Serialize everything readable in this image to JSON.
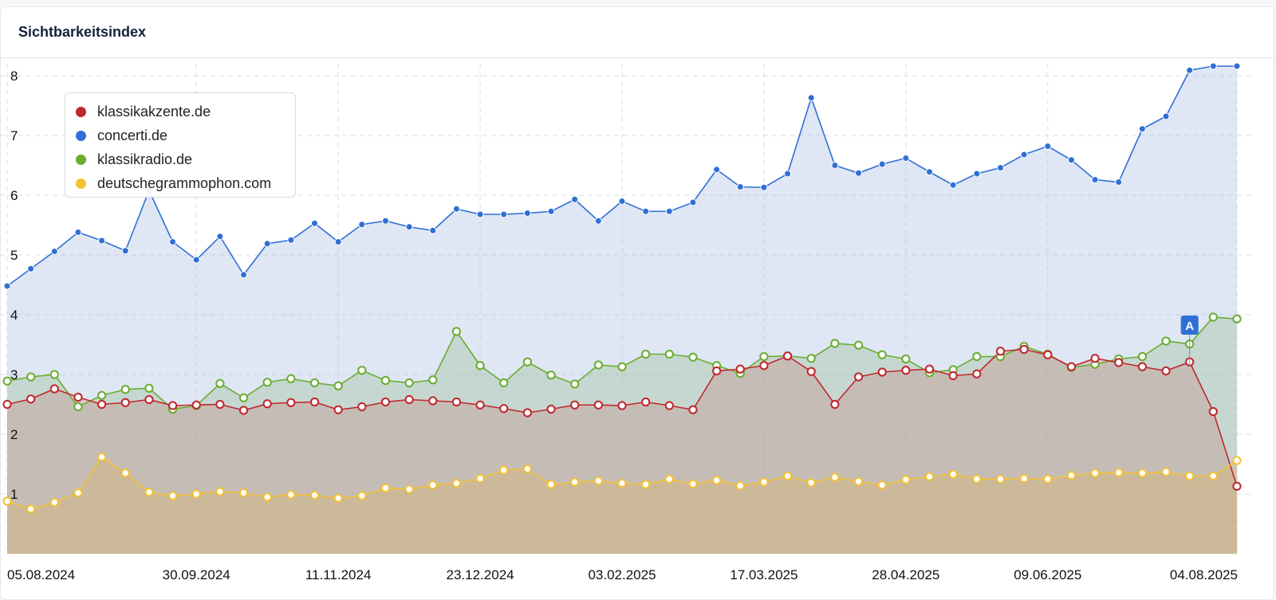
{
  "card": {
    "title": "Sichtbarkeitsindex"
  },
  "legend": [
    {
      "label": "klassikakzente.de",
      "color": "#c0272d"
    },
    {
      "label": "concerti.de",
      "color": "#2f6fd6"
    },
    {
      "label": "klassikradio.de",
      "color": "#6aad2f"
    },
    {
      "label": "deutschegrammophon.com",
      "color": "#f4c136"
    }
  ],
  "event_marker": {
    "label": "A",
    "color": "#2f6fd6"
  },
  "chart_data": {
    "type": "area",
    "title": "Sichtbarkeitsindex",
    "xlabel": "",
    "ylabel": "",
    "ylim": [
      0,
      8.3
    ],
    "y_ticks": [
      1,
      2,
      3,
      4,
      5,
      6,
      7,
      8
    ],
    "x_tick_labels": [
      "05.08.2024",
      "30.09.2024",
      "11.11.2024",
      "23.12.2024",
      "03.02.2025",
      "17.03.2025",
      "28.04.2025",
      "09.06.2025",
      "04.08.2025"
    ],
    "x_tick_indices": [
      0,
      8,
      14,
      20,
      26,
      32,
      38,
      44,
      52
    ],
    "grid": true,
    "legend_position": "top-left",
    "event_marker_index": 50,
    "series": [
      {
        "name": "concerti.de",
        "color": "#2f6fd6",
        "values": [
          4.48,
          4.77,
          5.06,
          5.38,
          5.24,
          5.07,
          6.08,
          5.22,
          4.92,
          5.31,
          4.67,
          5.19,
          5.25,
          5.53,
          5.22,
          5.51,
          5.57,
          5.47,
          5.41,
          5.77,
          5.68,
          5.68,
          5.7,
          5.73,
          5.93,
          5.57,
          5.9,
          5.73,
          5.73,
          5.88,
          6.43,
          6.14,
          6.13,
          6.36,
          7.63,
          6.5,
          6.37,
          6.52,
          6.62,
          6.39,
          6.17,
          6.36,
          6.46,
          6.68,
          6.82,
          6.59,
          6.26,
          6.22,
          7.11,
          7.32,
          8.09,
          8.16,
          8.16
        ]
      },
      {
        "name": "klassikradio.de",
        "color": "#6aad2f",
        "values": [
          2.89,
          2.96,
          3.0,
          2.46,
          2.65,
          2.75,
          2.77,
          2.42,
          2.48,
          2.85,
          2.61,
          2.87,
          2.93,
          2.86,
          2.81,
          3.07,
          2.9,
          2.86,
          2.91,
          3.72,
          3.15,
          2.86,
          3.21,
          2.99,
          2.84,
          3.16,
          3.13,
          3.34,
          3.34,
          3.29,
          3.15,
          3.02,
          3.3,
          3.31,
          3.27,
          3.52,
          3.49,
          3.33,
          3.26,
          3.03,
          3.08,
          3.3,
          3.3,
          3.47,
          3.34,
          3.12,
          3.17,
          3.26,
          3.3,
          3.56,
          3.51,
          3.96,
          3.93
        ]
      },
      {
        "name": "klassikakzente.de",
        "color": "#c0272d",
        "values": [
          2.5,
          2.59,
          2.76,
          2.62,
          2.5,
          2.53,
          2.58,
          2.48,
          2.49,
          2.5,
          2.4,
          2.51,
          2.53,
          2.54,
          2.41,
          2.46,
          2.54,
          2.58,
          2.56,
          2.54,
          2.49,
          2.43,
          2.36,
          2.42,
          2.49,
          2.49,
          2.48,
          2.54,
          2.48,
          2.41,
          3.06,
          3.09,
          3.15,
          3.31,
          3.05,
          2.5,
          2.96,
          3.04,
          3.07,
          3.09,
          2.98,
          3.01,
          3.39,
          3.42,
          3.33,
          3.13,
          3.27,
          3.2,
          3.13,
          3.06,
          3.21,
          2.38,
          1.13
        ]
      },
      {
        "name": "deutschegrammophon.com",
        "color": "#f4c136",
        "values": [
          0.88,
          0.75,
          0.86,
          1.02,
          1.62,
          1.35,
          1.03,
          0.97,
          1.0,
          1.04,
          1.02,
          0.95,
          0.99,
          0.98,
          0.93,
          0.97,
          1.1,
          1.08,
          1.15,
          1.18,
          1.26,
          1.4,
          1.42,
          1.16,
          1.2,
          1.22,
          1.18,
          1.16,
          1.25,
          1.17,
          1.23,
          1.14,
          1.2,
          1.3,
          1.19,
          1.28,
          1.21,
          1.15,
          1.24,
          1.29,
          1.33,
          1.25,
          1.25,
          1.26,
          1.25,
          1.31,
          1.35,
          1.36,
          1.35,
          1.37,
          1.3,
          1.3,
          1.56
        ]
      }
    ]
  }
}
